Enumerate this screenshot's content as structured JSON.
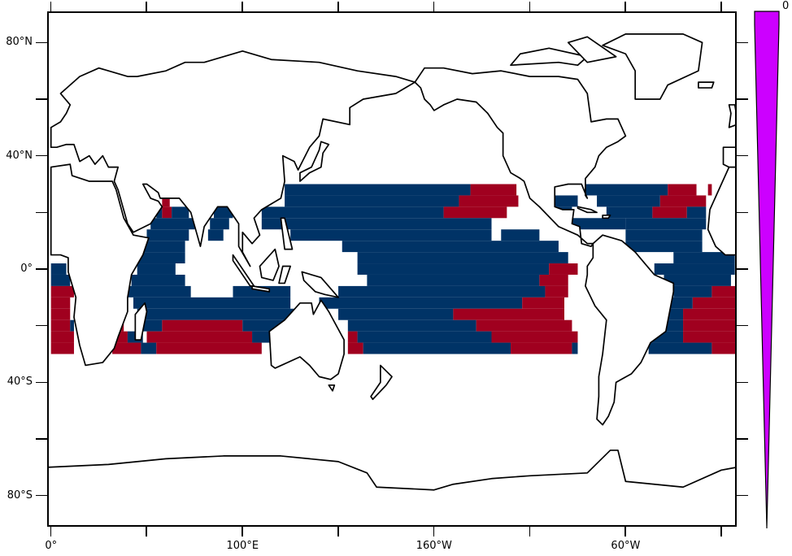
{
  "axes": {
    "x_ticks_lon": [
      0,
      50,
      100,
      150,
      200,
      250,
      300,
      350
    ],
    "x_labels": [
      {
        "lon": 0,
        "text": "0°"
      },
      {
        "lon": 100,
        "text": "100°E"
      },
      {
        "lon": 200,
        "text": "160°W"
      },
      {
        "lon": 300,
        "text": "60°W"
      }
    ],
    "y_ticks_lat": [
      80,
      60,
      40,
      20,
      0,
      -20,
      -40,
      -60,
      -80
    ],
    "y_labels": [
      {
        "lat": 80,
        "text": "80°N"
      },
      {
        "lat": 40,
        "text": "40°N"
      },
      {
        "lat": 0,
        "text": "0°"
      },
      {
        "lat": -40,
        "text": "40°S"
      },
      {
        "lat": -80,
        "text": "80°S"
      }
    ],
    "lon_range": [
      -2,
      358
    ],
    "lat_range": [
      -91,
      91
    ]
  },
  "colorbar": {
    "label": "0",
    "color": "#cc00ff"
  },
  "map_data": {
    "colors": {
      "b": "#003366",
      "r": "#a0001f"
    },
    "rows": [
      {
        "lat": [
          26,
          30
        ],
        "segs": [
          [
            122,
            219,
            "b"
          ],
          [
            219,
            243,
            "r"
          ],
          [
            279,
            322,
            "b"
          ],
          [
            322,
            337,
            "r"
          ],
          [
            343,
            345,
            "r"
          ]
        ]
      },
      {
        "lat": [
          22,
          26
        ],
        "segs": [
          [
            58,
            62,
            "r"
          ],
          [
            122,
            213,
            "b"
          ],
          [
            213,
            244,
            "r"
          ],
          [
            263,
            275,
            "b"
          ],
          [
            285,
            318,
            "b"
          ],
          [
            318,
            342,
            "r"
          ]
        ]
      },
      {
        "lat": [
          18,
          22
        ],
        "segs": [
          [
            55,
            58,
            "b"
          ],
          [
            58,
            63,
            "r"
          ],
          [
            63,
            72,
            "b"
          ],
          [
            85,
            95,
            "b"
          ],
          [
            110,
            205,
            "b"
          ],
          [
            205,
            238,
            "r"
          ],
          [
            263,
            272,
            "b"
          ],
          [
            290,
            314,
            "b"
          ],
          [
            314,
            332,
            "r"
          ],
          [
            332,
            342,
            "b"
          ]
        ]
      },
      {
        "lat": [
          14,
          18
        ],
        "segs": [
          [
            52,
            75,
            "b"
          ],
          [
            83,
            93,
            "b"
          ],
          [
            110,
            230,
            "b"
          ],
          [
            270,
            300,
            "b"
          ],
          [
            300,
            342,
            "b"
          ]
        ]
      },
      {
        "lat": [
          10,
          14
        ],
        "segs": [
          [
            50,
            72,
            "b"
          ],
          [
            82,
            90,
            "b"
          ],
          [
            125,
            230,
            "b"
          ],
          [
            235,
            255,
            "b"
          ],
          [
            300,
            340,
            "b"
          ]
        ]
      },
      {
        "lat": [
          6,
          10
        ],
        "segs": [
          [
            48,
            70,
            "b"
          ],
          [
            152,
            265,
            "b"
          ],
          [
            300,
            340,
            "b"
          ]
        ]
      },
      {
        "lat": [
          2,
          6
        ],
        "segs": [
          [
            45,
            70,
            "b"
          ],
          [
            160,
            270,
            "b"
          ],
          [
            325,
            357,
            "b"
          ]
        ]
      },
      {
        "lat": [
          -2,
          2
        ],
        "segs": [
          [
            0,
            8,
            "b"
          ],
          [
            45,
            65,
            "b"
          ],
          [
            160,
            260,
            "b"
          ],
          [
            260,
            275,
            "r"
          ],
          [
            315,
            357,
            "b"
          ]
        ]
      },
      {
        "lat": [
          -6,
          -2
        ],
        "segs": [
          [
            0,
            10,
            "b"
          ],
          [
            42,
            70,
            "b"
          ],
          [
            165,
            255,
            "b"
          ],
          [
            255,
            270,
            "r"
          ],
          [
            320,
            355,
            "b"
          ]
        ]
      },
      {
        "lat": [
          -10,
          -6
        ],
        "segs": [
          [
            0,
            12,
            "r"
          ],
          [
            40,
            73,
            "b"
          ],
          [
            95,
            125,
            "b"
          ],
          [
            150,
            258,
            "b"
          ],
          [
            258,
            270,
            "r"
          ],
          [
            325,
            345,
            "b"
          ],
          [
            345,
            358,
            "r"
          ]
        ]
      },
      {
        "lat": [
          -14,
          -10
        ],
        "segs": [
          [
            0,
            10,
            "r"
          ],
          [
            43,
            125,
            "b"
          ],
          [
            140,
            246,
            "b"
          ],
          [
            246,
            268,
            "r"
          ],
          [
            322,
            335,
            "b"
          ],
          [
            335,
            358,
            "r"
          ]
        ]
      },
      {
        "lat": [
          -18,
          -14
        ],
        "segs": [
          [
            0,
            10,
            "r"
          ],
          [
            45,
            135,
            "b"
          ],
          [
            150,
            210,
            "b"
          ],
          [
            210,
            268,
            "r"
          ],
          [
            320,
            330,
            "b"
          ],
          [
            330,
            358,
            "r"
          ]
        ]
      },
      {
        "lat": [
          -22,
          -18
        ],
        "segs": [
          [
            0,
            10,
            "r"
          ],
          [
            10,
            12,
            "b"
          ],
          [
            35,
            38,
            "r"
          ],
          [
            44,
            58,
            "b"
          ],
          [
            58,
            100,
            "r"
          ],
          [
            100,
            125,
            "b"
          ],
          [
            155,
            222,
            "b"
          ],
          [
            222,
            272,
            "r"
          ],
          [
            320,
            330,
            "b"
          ],
          [
            330,
            358,
            "r"
          ]
        ]
      },
      {
        "lat": [
          -26,
          -22
        ],
        "segs": [
          [
            0,
            12,
            "r"
          ],
          [
            32,
            40,
            "r"
          ],
          [
            40,
            48,
            "b"
          ],
          [
            50,
            105,
            "r"
          ],
          [
            105,
            115,
            "b"
          ],
          [
            155,
            160,
            "r"
          ],
          [
            160,
            230,
            "b"
          ],
          [
            230,
            275,
            "r"
          ],
          [
            312,
            330,
            "b"
          ],
          [
            330,
            358,
            "r"
          ]
        ]
      },
      {
        "lat": [
          -30,
          -26
        ],
        "segs": [
          [
            0,
            12,
            "r"
          ],
          [
            32,
            47,
            "r"
          ],
          [
            47,
            55,
            "b"
          ],
          [
            55,
            110,
            "r"
          ],
          [
            155,
            163,
            "r"
          ],
          [
            163,
            240,
            "b"
          ],
          [
            240,
            272,
            "r"
          ],
          [
            272,
            275,
            "b"
          ],
          [
            312,
            345,
            "b"
          ],
          [
            345,
            358,
            "r"
          ]
        ]
      }
    ]
  }
}
